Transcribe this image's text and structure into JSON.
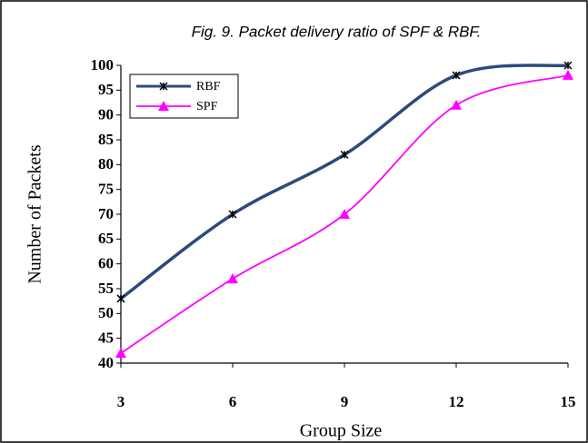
{
  "chart_data": {
    "type": "line",
    "title": "Fig. 9. Packet delivery ratio of SPF & RBF.",
    "x_label": "Group Size",
    "y_label": "Number of Packets",
    "x": [
      3,
      6,
      9,
      12,
      15
    ],
    "xlim": [
      3,
      15
    ],
    "xticks": [
      3,
      6,
      9,
      12,
      15
    ],
    "ylim": [
      40,
      100
    ],
    "yticks": [
      40,
      45,
      50,
      55,
      60,
      65,
      70,
      75,
      80,
      85,
      90,
      95,
      100
    ],
    "legend": "upper left",
    "series": [
      {
        "name": "RBF",
        "color": "#2c4a7c",
        "marker": "x",
        "values": [
          53,
          70,
          82,
          98,
          100
        ]
      },
      {
        "name": "SPF",
        "color": "#ff00ff",
        "marker": "triangle",
        "values": [
          42,
          57,
          70,
          92,
          98
        ]
      }
    ]
  }
}
